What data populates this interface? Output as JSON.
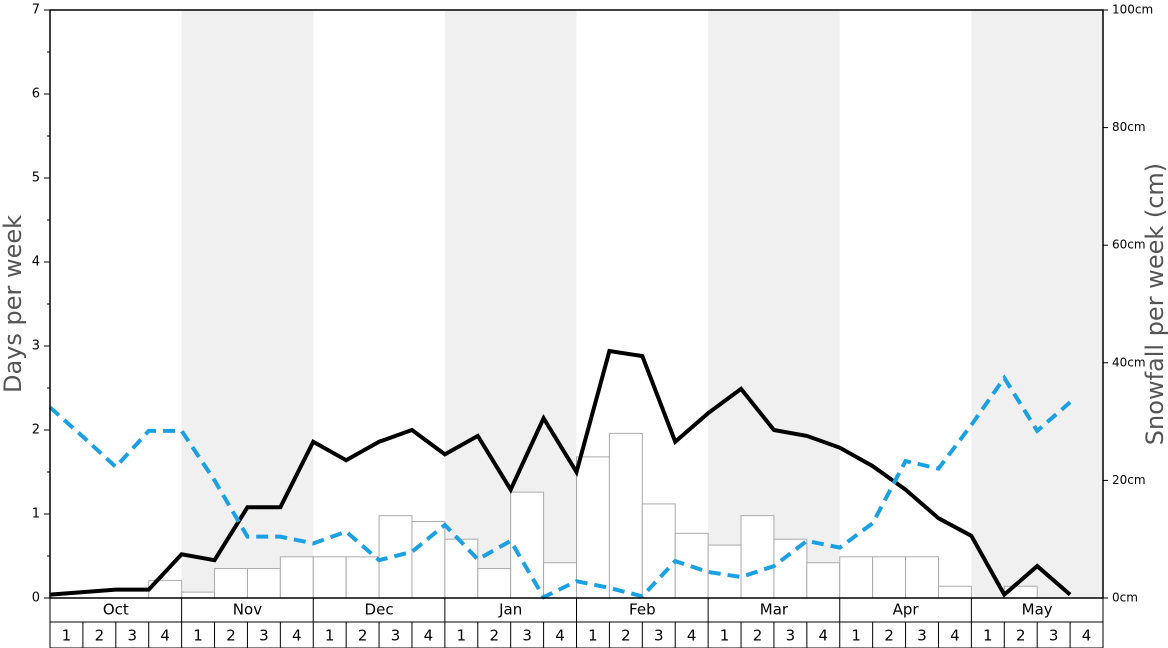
{
  "chart_data": {
    "type": "bar",
    "y_label": "Days per week",
    "y2_label": "Snowfall per week (cm)",
    "months": [
      "Oct",
      "Nov",
      "Dec",
      "Jan",
      "Feb",
      "Mar",
      "Apr",
      "May"
    ],
    "categories": [
      "1",
      "2",
      "3",
      "4",
      "1",
      "2",
      "3",
      "4",
      "1",
      "2",
      "3",
      "4",
      "1",
      "2",
      "3",
      "4",
      "1",
      "2",
      "3",
      "4",
      "1",
      "2",
      "3",
      "4",
      "1",
      "2",
      "3",
      "4",
      "1",
      "2",
      "3",
      "4"
    ],
    "ylim": [
      0,
      7
    ],
    "yticks": [
      0,
      1,
      2,
      3,
      4,
      5,
      6,
      7
    ],
    "y2lim": [
      0,
      100
    ],
    "y2ticks": [
      {
        "value": 0,
        "label": "0cm"
      },
      {
        "value": 20,
        "label": "20cm"
      },
      {
        "value": 40,
        "label": "40cm"
      },
      {
        "value": 60,
        "label": "60cm"
      },
      {
        "value": 80,
        "label": "80cm"
      },
      {
        "value": 100,
        "label": "100cm"
      }
    ],
    "series": [
      {
        "type": "bar",
        "axis": "y2",
        "color": "#ffffff",
        "values": [
          0,
          0,
          0,
          3,
          1,
          5,
          5,
          7,
          7,
          7,
          14,
          13,
          10,
          5,
          18,
          6,
          24,
          28,
          16,
          11,
          9,
          14,
          10,
          6,
          7,
          7,
          7,
          2,
          0,
          2,
          0,
          0
        ]
      },
      {
        "type": "line",
        "color": "#000000",
        "dashed": false,
        "values": [
          0.04,
          0.07,
          0.1,
          0.1,
          0.52,
          0.45,
          1.08,
          1.08,
          1.86,
          1.64,
          1.86,
          2.0,
          1.71,
          1.93,
          1.29,
          2.14,
          1.5,
          2.94,
          2.88,
          1.86,
          2.2,
          2.49,
          2.0,
          1.93,
          1.79,
          1.57,
          1.29,
          0.95,
          0.74,
          0.04,
          0.38,
          0.04
        ]
      },
      {
        "type": "line",
        "color": "#1ba1e2",
        "dashed": true,
        "values": [
          2.27,
          1.92,
          1.56,
          1.99,
          1.99,
          1.4,
          0.73,
          0.73,
          0.65,
          0.79,
          0.45,
          0.55,
          0.87,
          0.46,
          0.68,
          0.01,
          0.2,
          0.12,
          0.02,
          0.44,
          0.31,
          0.25,
          0.38,
          0.68,
          0.6,
          0.89,
          1.63,
          1.54,
          2.06,
          2.62,
          1.99,
          2.33
        ]
      }
    ]
  }
}
